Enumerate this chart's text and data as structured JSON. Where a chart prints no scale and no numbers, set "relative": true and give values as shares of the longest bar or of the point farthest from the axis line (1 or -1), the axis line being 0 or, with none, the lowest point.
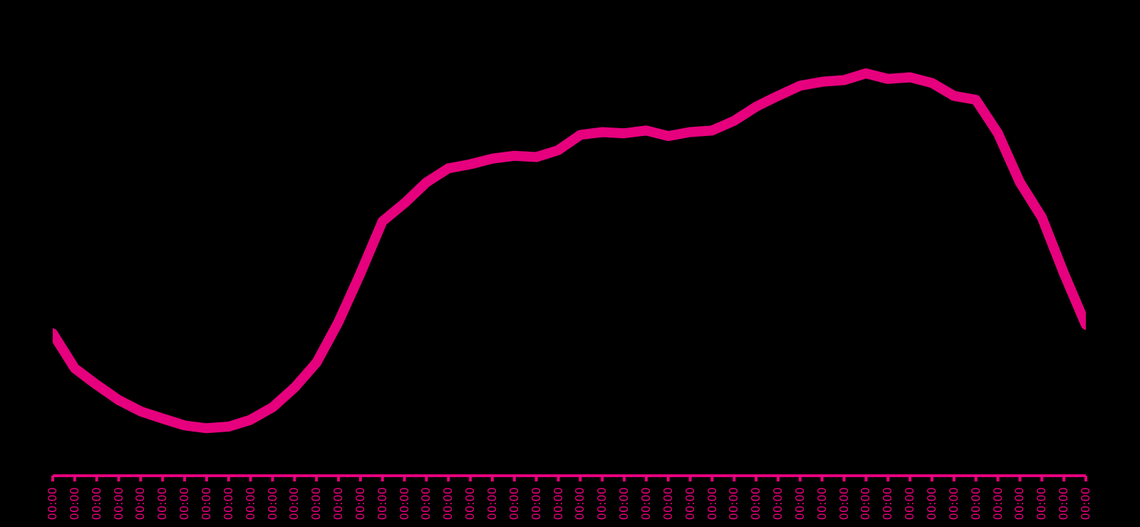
{
  "chart_data": {
    "type": "line",
    "relative": true,
    "legend": false,
    "marker": "none",
    "line_style": "solid",
    "categories": [
      "00:00",
      "00:00",
      "00:00",
      "00:00",
      "00:00",
      "00:00",
      "00:00",
      "00:00",
      "00:00",
      "00:00",
      "00:00",
      "00:00",
      "00:00",
      "00:00",
      "00:00",
      "00:00",
      "00:00",
      "00:00",
      "00:00",
      "00:00",
      "00:00",
      "00:00",
      "00:00",
      "00:00",
      "00:00",
      "00:00",
      "00:00",
      "00:00",
      "00:00",
      "00:00",
      "00:00",
      "00:00",
      "00:00",
      "00:00",
      "00:00",
      "00:00",
      "00:00",
      "00:00",
      "00:00",
      "00:00",
      "00:00",
      "00:00",
      "00:00",
      "00:00",
      "00:00",
      "00:00",
      "00:00",
      "00:00"
    ],
    "series": [
      {
        "color": "#e6007e",
        "values": [
          0.354,
          0.267,
          0.226,
          0.188,
          0.16,
          0.142,
          0.125,
          0.118,
          0.122,
          0.139,
          0.17,
          0.219,
          0.281,
          0.382,
          0.503,
          0.632,
          0.677,
          0.729,
          0.764,
          0.774,
          0.788,
          0.795,
          0.792,
          0.809,
          0.847,
          0.854,
          0.851,
          0.858,
          0.844,
          0.854,
          0.858,
          0.882,
          0.917,
          0.944,
          0.969,
          0.979,
          0.983,
          1,
          0.986,
          0.99,
          0.976,
          0.944,
          0.934,
          0.851,
          0.729,
          0.642,
          0.503,
          0.375
        ]
      }
    ]
  }
}
